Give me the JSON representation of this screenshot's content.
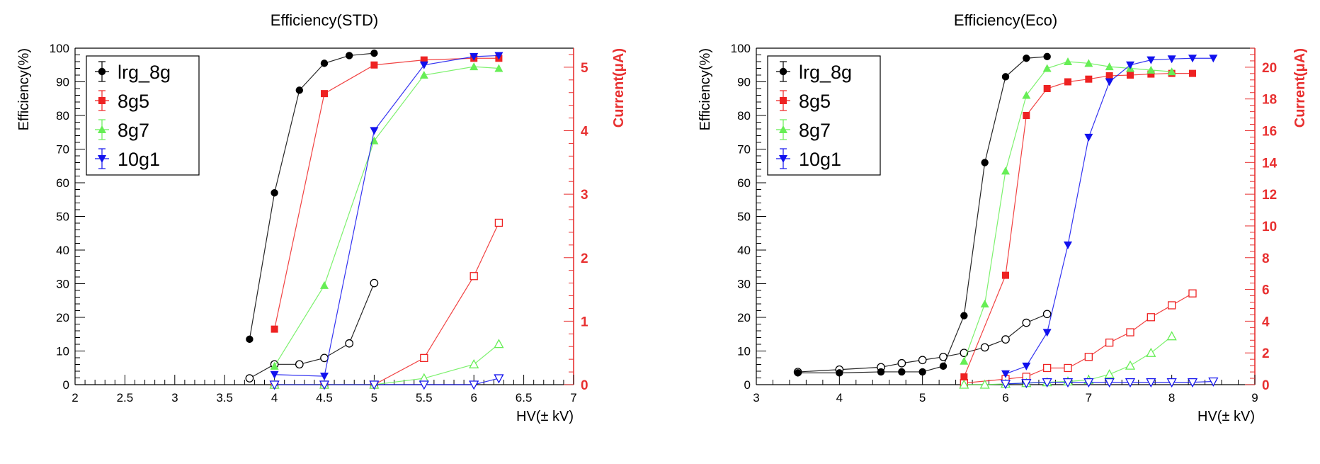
{
  "colors": {
    "lrg_8g": "#000000",
    "8g5": "#ee2222",
    "8g7": "#66ee55",
    "10g1": "#1111ee",
    "current_axis": "#e83030",
    "frame": "#000000"
  },
  "legend": {
    "position": "top-left",
    "entries": [
      "lrg_8g",
      "8g5",
      "8g7",
      "10g1"
    ],
    "markers": [
      "filled-circle",
      "filled-square",
      "filled-triangle-up",
      "filled-triangle-down"
    ]
  },
  "chart_data": [
    {
      "type": "line",
      "title": "Efficiency(STD)",
      "xlabel": "HV(± kV)",
      "ylabel": "Efficiency(%)",
      "y2label": "Current(μA)",
      "xlim": [
        2,
        7
      ],
      "ylim": [
        0,
        100
      ],
      "y2lim": [
        0,
        5.3
      ],
      "x_ticks": [
        "2",
        "2.5",
        "3",
        "3.5",
        "4",
        "4.5",
        "5",
        "5.5",
        "6",
        "6.5",
        "7"
      ],
      "y_ticks": [
        "0",
        "10",
        "20",
        "30",
        "40",
        "50",
        "60",
        "70",
        "80",
        "90",
        "100"
      ],
      "y2_ticks": [
        "0",
        "1",
        "2",
        "3",
        "4",
        "5"
      ],
      "grid": false,
      "legend_position": "top-left",
      "efficiency_series": [
        {
          "name": "lrg_8g",
          "marker": "filled-circle",
          "x": [
            3.75,
            4.0,
            4.25,
            4.5,
            4.75,
            5.0
          ],
          "y": [
            13.5,
            57,
            87.5,
            95.5,
            97.8,
            98.5
          ]
        },
        {
          "name": "8g5",
          "marker": "filled-square",
          "x": [
            4.0,
            4.5,
            5.0,
            5.5,
            6.0,
            6.25
          ],
          "y": [
            16.5,
            86.5,
            95,
            96.5,
            97,
            97
          ]
        },
        {
          "name": "8g7",
          "marker": "filled-triangle-up",
          "x": [
            4.0,
            4.5,
            5.0,
            5.5,
            6.0,
            6.25
          ],
          "y": [
            5.5,
            29.5,
            72.5,
            92,
            94.5,
            94
          ]
        },
        {
          "name": "10g1",
          "marker": "filled-triangle-down",
          "x": [
            4.0,
            4.5,
            5.0,
            5.5,
            6.0,
            6.25
          ],
          "y": [
            3,
            2.5,
            75.5,
            95,
            97.5,
            97.8
          ]
        }
      ],
      "current_series": [
        {
          "name": "lrg_8g",
          "marker": "open-circle",
          "x": [
            3.75,
            4.0,
            4.25,
            4.5,
            4.75,
            5.0
          ],
          "y": [
            0.1,
            0.32,
            0.32,
            0.42,
            0.65,
            1.6
          ]
        },
        {
          "name": "8g5",
          "marker": "open-square",
          "x": [
            4.0,
            4.5,
            5.0,
            5.5,
            6.0,
            6.25
          ],
          "y": [
            0,
            0,
            0,
            0.42,
            1.71,
            2.55
          ]
        },
        {
          "name": "8g7",
          "marker": "open-triangle-up",
          "x": [
            4.0,
            4.5,
            5.0,
            5.5,
            6.0,
            6.25
          ],
          "y": [
            0,
            0,
            0,
            0.1,
            0.32,
            0.64
          ]
        },
        {
          "name": "10g1",
          "marker": "open-triangle-down",
          "x": [
            4.0,
            4.5,
            5.0,
            5.5,
            6.0,
            6.25
          ],
          "y": [
            0,
            0,
            0,
            0,
            0,
            0.1
          ]
        }
      ]
    },
    {
      "type": "line",
      "title": "Efficiency(Eco)",
      "xlabel": "HV(± kV)",
      "ylabel": "Efficiency(%)",
      "y2label": "Current(μA)",
      "xlim": [
        3,
        9
      ],
      "ylim": [
        0,
        100
      ],
      "y2lim": [
        0,
        21.2
      ],
      "x_ticks": [
        "3",
        "4",
        "5",
        "6",
        "7",
        "8",
        "9"
      ],
      "y_ticks": [
        "0",
        "10",
        "20",
        "30",
        "40",
        "50",
        "60",
        "70",
        "80",
        "90",
        "100"
      ],
      "y2_ticks": [
        "0",
        "2",
        "4",
        "6",
        "8",
        "10",
        "12",
        "14",
        "16",
        "18",
        "20"
      ],
      "grid": false,
      "legend_position": "top-left",
      "efficiency_series": [
        {
          "name": "lrg_8g",
          "marker": "filled-circle",
          "x": [
            3.5,
            4.0,
            4.5,
            4.75,
            5.0,
            5.25,
            5.5,
            5.75,
            6.0,
            6.25,
            6.5
          ],
          "y": [
            3.5,
            3.5,
            3.8,
            3.8,
            3.8,
            5.5,
            20.5,
            66,
            91.5,
            97,
            97.5
          ]
        },
        {
          "name": "8g5",
          "marker": "filled-square",
          "x": [
            5.5,
            6.0,
            6.25,
            6.5,
            6.75,
            7.0,
            7.25,
            7.5,
            7.75,
            8.0,
            8.25
          ],
          "y": [
            2.3,
            32.5,
            80,
            88,
            90,
            90.8,
            91.8,
            92,
            92.3,
            92.5,
            92.5
          ]
        },
        {
          "name": "8g7",
          "marker": "filled-triangle-up",
          "x": [
            5.5,
            5.75,
            6.0,
            6.25,
            6.5,
            6.75,
            7.0,
            7.25,
            7.5,
            7.75,
            8.0
          ],
          "y": [
            7,
            24,
            63.5,
            86,
            94,
            96,
            95.5,
            94.5,
            94,
            93.5,
            93
          ]
        },
        {
          "name": "10g1",
          "marker": "filled-triangle-down",
          "x": [
            6.0,
            6.25,
            6.5,
            6.75,
            7.0,
            7.25,
            7.5,
            7.75,
            8.0,
            8.25,
            8.5
          ],
          "y": [
            3.2,
            5.5,
            15.5,
            41.5,
            73.5,
            90,
            95,
            96.5,
            96.8,
            97,
            97
          ]
        }
      ],
      "current_series": [
        {
          "name": "lrg_8g",
          "marker": "open-circle",
          "x": [
            3.5,
            4.0,
            4.5,
            4.75,
            5.0,
            5.25,
            5.5,
            5.75,
            6.0,
            6.25,
            6.5
          ],
          "y": [
            0.8,
            0.95,
            1.1,
            1.35,
            1.55,
            1.75,
            2.0,
            2.35,
            2.85,
            3.9,
            4.45
          ]
        },
        {
          "name": "8g5",
          "marker": "open-square",
          "x": [
            5.5,
            6.0,
            6.25,
            6.5,
            6.75,
            7.0,
            7.25,
            7.5,
            7.75,
            8.0,
            8.25
          ],
          "y": [
            0.1,
            0.35,
            0.5,
            1.05,
            1.05,
            1.75,
            2.65,
            3.3,
            4.25,
            5.0,
            5.75
          ]
        },
        {
          "name": "8g7",
          "marker": "open-triangle-up",
          "x": [
            5.5,
            5.75,
            6.0,
            6.25,
            6.5,
            6.75,
            7.0,
            7.25,
            7.5,
            7.75,
            8.0
          ],
          "y": [
            0.0,
            0.0,
            0.05,
            0.1,
            0.15,
            0.2,
            0.3,
            0.65,
            1.2,
            2.0,
            3.05
          ]
        },
        {
          "name": "10g1",
          "marker": "open-triangle-down",
          "x": [
            6.0,
            6.25,
            6.5,
            6.75,
            7.0,
            7.25,
            7.5,
            7.75,
            8.0,
            8.25,
            8.5
          ],
          "y": [
            0.05,
            0.1,
            0.15,
            0.15,
            0.15,
            0.15,
            0.15,
            0.15,
            0.15,
            0.15,
            0.2
          ]
        }
      ]
    }
  ]
}
